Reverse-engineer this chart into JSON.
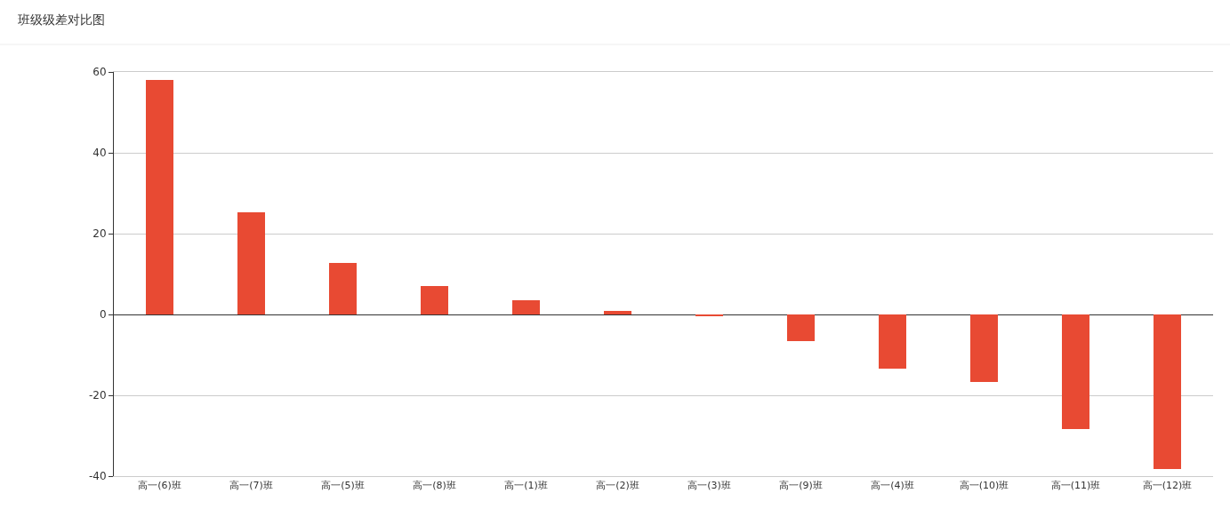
{
  "chart_data": {
    "type": "bar",
    "title": "班级级差对比图",
    "categories": [
      "高一(6)班",
      "高一(7)班",
      "高一(5)班",
      "高一(8)班",
      "高一(1)班",
      "高一(2)班",
      "高一(3)班",
      "高一(9)班",
      "高一(4)班",
      "高一(10)班",
      "高一(11)班",
      "高一(12)班"
    ],
    "values": [
      58.0,
      25.3,
      12.8,
      7.1,
      3.6,
      0.8,
      -0.5,
      -6.6,
      -13.4,
      -16.7,
      -28.3,
      -38.3
    ],
    "color": "#e84a33",
    "ylim": [
      -40,
      60
    ],
    "yticks": [
      -40,
      -20,
      0,
      20,
      40,
      60
    ],
    "grid": "y"
  }
}
